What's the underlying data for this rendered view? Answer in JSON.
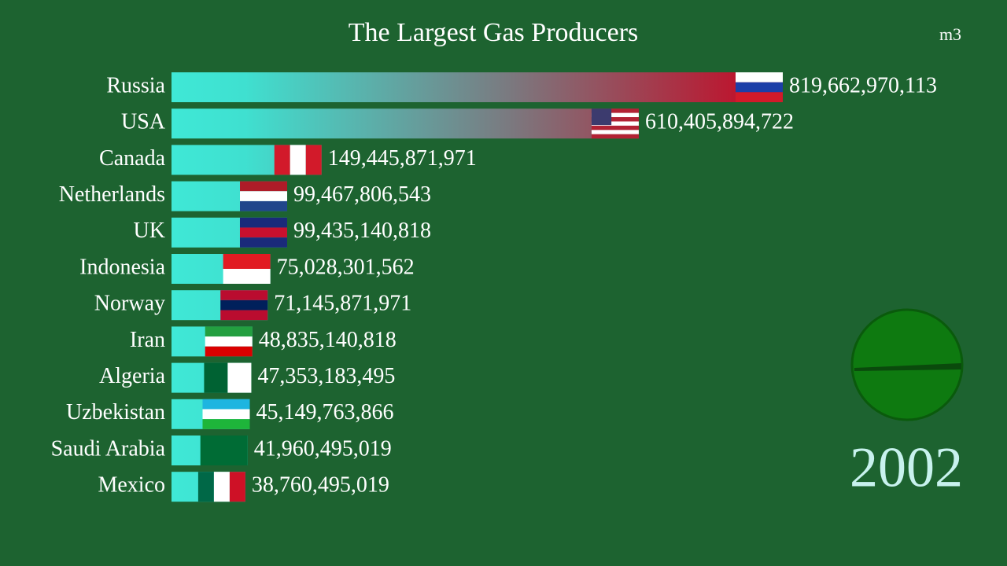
{
  "chart_data": {
    "type": "bar",
    "orientation": "horizontal",
    "title": "The Largest Gas Producers",
    "unit": "m3",
    "year": "2002",
    "categories": [
      "Russia",
      "USA",
      "Canada",
      "Netherlands",
      "UK",
      "Indonesia",
      "Norway",
      "Iran",
      "Algeria",
      "Uzbekistan",
      "Saudi Arabia",
      "Mexico"
    ],
    "values": [
      819662970113,
      610405894722,
      149445871971,
      99467806543,
      99435140818,
      75028301562,
      71145871971,
      48835140818,
      47353183495,
      45149763866,
      41960495019,
      38760495019
    ],
    "value_labels": [
      "819,662,970,113",
      "610,405,894,722",
      "149,445,871,971",
      "99,467,806,543",
      "99,435,140,818",
      "75,028,301,562",
      "71,145,871,971",
      "48,835,140,818",
      "47,353,183,495",
      "45,149,763,866",
      "41,960,495,019",
      "38,760,495,019"
    ]
  }
}
